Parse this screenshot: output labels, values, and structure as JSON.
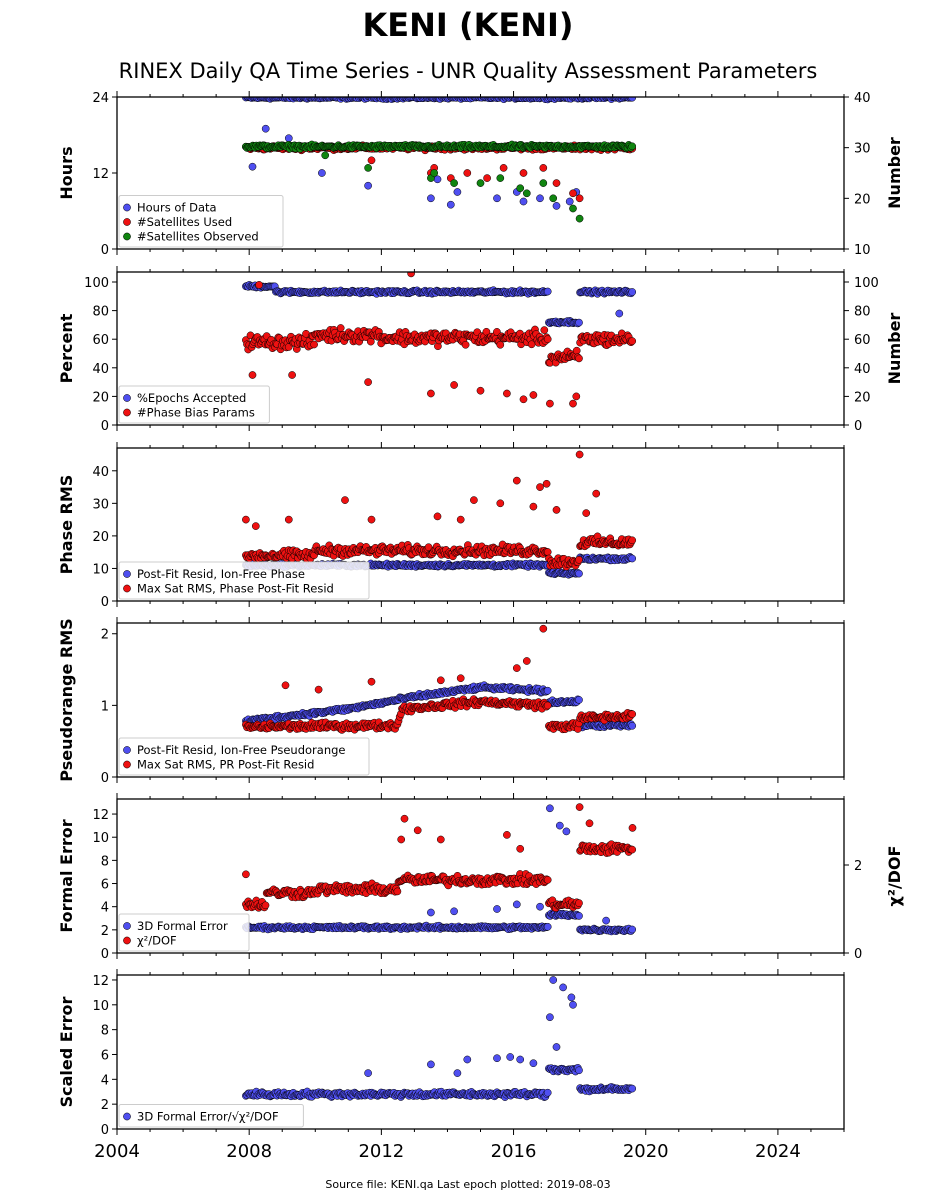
{
  "header": {
    "title": "KENI (KENI)",
    "subtitle": "RINEX Daily QA Time Series - UNR Quality Assessment Parameters"
  },
  "footer": "Source file: KENI.qa Last epoch plotted: 2019-08-03",
  "colors": {
    "blue": "#4f4ff0",
    "red": "#ee1111",
    "green": "#108510",
    "edge": "#000000"
  },
  "chart_data": [
    {
      "type": "scatter",
      "ylabel": "Hours",
      "ylabel_right": "Number",
      "xlim": [
        2004,
        2026
      ],
      "ylim": [
        0,
        24
      ],
      "ylim_right": [
        10,
        40
      ],
      "yticks": [
        0,
        12,
        24
      ],
      "yticks_right": [
        10,
        20,
        30,
        40
      ],
      "legend_position": "lower-left",
      "series": [
        {
          "name": "Hours of Data",
          "axis": "left",
          "color": "blue",
          "base": 23.9,
          "noise": 0.3,
          "outliers": [
            [
              2008.1,
              13
            ],
            [
              2008.5,
              19
            ],
            [
              2009.2,
              17.5
            ],
            [
              2010.2,
              12
            ],
            [
              2011.6,
              10
            ],
            [
              2013.5,
              8
            ],
            [
              2013.7,
              11
            ],
            [
              2014.1,
              7
            ],
            [
              2014.3,
              9
            ],
            [
              2015.5,
              8
            ],
            [
              2016.1,
              9
            ],
            [
              2016.3,
              7.5
            ],
            [
              2016.8,
              8
            ],
            [
              2017.3,
              6.8
            ],
            [
              2017.7,
              7.5
            ],
            [
              2017.9,
              9
            ]
          ]
        },
        {
          "name": "#Satellites Used",
          "axis": "right",
          "color": "red",
          "base": 30,
          "noise": 0.6,
          "outliers": [
            [
              2011.7,
              27.5
            ],
            [
              2013.5,
              25
            ],
            [
              2013.6,
              26
            ],
            [
              2014.1,
              24
            ],
            [
              2014.6,
              25
            ],
            [
              2015.2,
              24
            ],
            [
              2015.7,
              26
            ],
            [
              2016.3,
              25
            ],
            [
              2016.9,
              26
            ],
            [
              2017.3,
              23
            ],
            [
              2017.8,
              21
            ],
            [
              2018.0,
              20
            ]
          ]
        },
        {
          "name": "#Satellites Observed",
          "axis": "right",
          "color": "green",
          "base": 30.2,
          "noise": 0.5,
          "outliers": [
            [
              2010.3,
              28.5
            ],
            [
              2011.6,
              26
            ],
            [
              2013.5,
              24
            ],
            [
              2013.6,
              25
            ],
            [
              2014.2,
              23
            ],
            [
              2015.0,
              23
            ],
            [
              2015.6,
              24
            ],
            [
              2016.2,
              22
            ],
            [
              2016.4,
              21
            ],
            [
              2016.9,
              23
            ],
            [
              2017.2,
              20
            ],
            [
              2017.8,
              18
            ],
            [
              2018.0,
              16
            ]
          ]
        }
      ]
    },
    {
      "type": "scatter",
      "ylabel": "Percent",
      "ylabel_right": "Number",
      "xlim": [
        2004,
        2026
      ],
      "ylim": [
        0,
        107
      ],
      "ylim_right": [
        0,
        107
      ],
      "yticks": [
        0,
        20,
        40,
        60,
        80,
        100
      ],
      "yticks_right": [
        0,
        20,
        40,
        60,
        80,
        100
      ],
      "legend_position": "lower-left",
      "series": [
        {
          "name": "%Epochs Accepted",
          "axis": "left",
          "color": "blue",
          "segments": [
            [
              2007.9,
              2008.8,
              97
            ],
            [
              2008.8,
              2010.0,
              93
            ],
            [
              2010.0,
              2017.05,
              93
            ],
            [
              2017.05,
              2018.0,
              72
            ],
            [
              2018.0,
              2019.6,
              93
            ]
          ],
          "noise": 1.5,
          "outliers": [
            [
              2019.2,
              78
            ]
          ]
        },
        {
          "name": "#Phase Bias Params",
          "axis": "right",
          "color": "red",
          "segments": [
            [
              2007.9,
              2010.0,
              58
            ],
            [
              2010.0,
              2012.0,
              63
            ],
            [
              2012.0,
              2017.05,
              61
            ],
            [
              2017.05,
              2018.0,
              47
            ],
            [
              2018.0,
              2019.6,
              60
            ]
          ],
          "noise": 7,
          "outliers": [
            [
              2008.3,
              98
            ],
            [
              2008.1,
              35
            ],
            [
              2009.3,
              35
            ],
            [
              2011.6,
              30
            ],
            [
              2012.9,
              106
            ],
            [
              2013.5,
              22
            ],
            [
              2014.2,
              28
            ],
            [
              2015.0,
              24
            ],
            [
              2015.8,
              22
            ],
            [
              2016.3,
              18
            ],
            [
              2016.6,
              21
            ],
            [
              2017.1,
              15
            ],
            [
              2017.8,
              15
            ],
            [
              2017.9,
              20
            ]
          ]
        }
      ]
    },
    {
      "type": "scatter",
      "ylabel": "Phase RMS",
      "xlim": [
        2004,
        2026
      ],
      "ylim": [
        0,
        47
      ],
      "yticks": [
        0,
        10,
        20,
        30,
        40
      ],
      "legend_position": "lower-left",
      "series": [
        {
          "name": "Post-Fit Resid, Ion-Free Phase",
          "axis": "left",
          "color": "blue",
          "segments": [
            [
              2007.9,
              2017.05,
              11
            ],
            [
              2017.05,
              2018.0,
              8.5
            ],
            [
              2018.0,
              2019.6,
              13
            ]
          ],
          "noise": 0.7,
          "outliers": []
        },
        {
          "name": "Max Sat RMS, Phase Post-Fit Resid",
          "axis": "left",
          "color": "red",
          "segments": [
            [
              2007.9,
              2010.0,
              14
            ],
            [
              2010.0,
              2017.05,
              15.5
            ],
            [
              2017.05,
              2018.0,
              12
            ],
            [
              2018.0,
              2019.6,
              18
            ]
          ],
          "noise": 2.2,
          "outliers": [
            [
              2007.9,
              25
            ],
            [
              2008.2,
              23
            ],
            [
              2009.2,
              25
            ],
            [
              2010.9,
              31
            ],
            [
              2011.7,
              25
            ],
            [
              2013.7,
              26
            ],
            [
              2014.4,
              25
            ],
            [
              2014.8,
              31
            ],
            [
              2015.6,
              30
            ],
            [
              2016.1,
              37
            ],
            [
              2016.6,
              29
            ],
            [
              2016.8,
              35
            ],
            [
              2017.0,
              36
            ],
            [
              2017.3,
              28
            ],
            [
              2018.0,
              45
            ],
            [
              2018.2,
              27
            ],
            [
              2018.5,
              33
            ]
          ]
        }
      ]
    },
    {
      "type": "scatter",
      "ylabel": "Pseudorange RMS",
      "xlim": [
        2004,
        2026
      ],
      "ylim": [
        0,
        2.15
      ],
      "yticks": [
        0,
        1,
        2
      ],
      "legend_position": "lower-left",
      "series": [
        {
          "name": "Post-Fit Resid, Ion-Free Pseudorange",
          "axis": "left",
          "color": "blue",
          "ramp": [
            [
              2007.9,
              0.78
            ],
            [
              2011.0,
              0.95
            ],
            [
              2013.0,
              1.12
            ],
            [
              2015.0,
              1.25
            ],
            [
              2017.05,
              1.2
            ],
            [
              2017.06,
              1.05
            ],
            [
              2018.0,
              1.05
            ],
            [
              2018.01,
              0.72
            ],
            [
              2019.6,
              0.72
            ]
          ],
          "noise": 0.04,
          "outliers": []
        },
        {
          "name": "Max Sat RMS, PR Post-Fit Resid",
          "axis": "left",
          "color": "red",
          "ramp": [
            [
              2007.9,
              0.7
            ],
            [
              2012.5,
              0.72
            ],
            [
              2012.6,
              0.95
            ],
            [
              2015.0,
              1.05
            ],
            [
              2017.05,
              1.0
            ],
            [
              2017.06,
              0.7
            ],
            [
              2018.0,
              0.72
            ],
            [
              2018.01,
              0.82
            ],
            [
              2019.6,
              0.85
            ]
          ],
          "noise": 0.07,
          "outliers": [
            [
              2009.1,
              1.28
            ],
            [
              2010.1,
              1.22
            ],
            [
              2011.7,
              1.33
            ],
            [
              2013.8,
              1.35
            ],
            [
              2014.4,
              1.38
            ],
            [
              2016.1,
              1.52
            ],
            [
              2016.4,
              1.62
            ],
            [
              2016.9,
              2.07
            ]
          ]
        }
      ]
    },
    {
      "type": "scatter",
      "ylabel": "Formal Error",
      "ylabel_right": "χ²/DOF",
      "xlim": [
        2004,
        2026
      ],
      "ylim": [
        0,
        13.3
      ],
      "ylim_right": [
        0,
        3.5
      ],
      "yticks": [
        0,
        2,
        4,
        6,
        8,
        10,
        12
      ],
      "yticks_right": [
        0,
        2
      ],
      "legend_position": "lower-left",
      "series": [
        {
          "name": "3D Formal Error",
          "axis": "left",
          "color": "blue",
          "segments": [
            [
              2007.9,
              2017.05,
              2.2
            ],
            [
              2017.05,
              2018.0,
              3.3
            ],
            [
              2018.0,
              2019.6,
              2.0
            ]
          ],
          "noise": 0.2,
          "outliers": [
            [
              2013.5,
              3.5
            ],
            [
              2014.2,
              3.6
            ],
            [
              2015.5,
              3.8
            ],
            [
              2016.1,
              4.2
            ],
            [
              2016.8,
              4.0
            ],
            [
              2017.1,
              12.5
            ],
            [
              2017.4,
              11.0
            ],
            [
              2017.6,
              10.5
            ],
            [
              2018.8,
              2.8
            ]
          ]
        },
        {
          "name": "χ²/DOF",
          "axis": "left",
          "color": "red",
          "segments": [
            [
              2007.9,
              2008.5,
              4.2
            ],
            [
              2008.5,
              2010.0,
              5.2
            ],
            [
              2010.0,
              2012.5,
              5.5
            ],
            [
              2012.5,
              2017.05,
              6.3
            ],
            [
              2017.05,
              2018.0,
              4.2
            ],
            [
              2018.0,
              2019.6,
              9.0
            ]
          ],
          "noise": 0.6,
          "outliers": [
            [
              2007.9,
              6.8
            ],
            [
              2012.7,
              11.6
            ],
            [
              2012.6,
              9.8
            ],
            [
              2013.1,
              10.6
            ],
            [
              2013.8,
              9.8
            ],
            [
              2015.8,
              10.2
            ],
            [
              2016.2,
              9.0
            ],
            [
              2018.0,
              12.6
            ],
            [
              2018.3,
              11.2
            ],
            [
              2019.6,
              10.8
            ]
          ]
        }
      ]
    },
    {
      "type": "scatter",
      "ylabel": "Scaled Error",
      "xlim": [
        2004,
        2026
      ],
      "ylim": [
        0,
        12.4
      ],
      "yticks": [
        0,
        2,
        4,
        6,
        8,
        10,
        12
      ],
      "xticks": [
        2004,
        2008,
        2012,
        2016,
        2020,
        2024
      ],
      "legend_position": "lower-left",
      "series": [
        {
          "name": "3D Formal Error/√χ²/DOF",
          "axis": "left",
          "color": "blue",
          "segments": [
            [
              2007.9,
              2017.05,
              2.8
            ],
            [
              2017.05,
              2018.0,
              4.8
            ],
            [
              2018.0,
              2019.6,
              3.2
            ]
          ],
          "noise": 0.3,
          "outliers": [
            [
              2011.6,
              4.5
            ],
            [
              2013.5,
              5.2
            ],
            [
              2014.3,
              4.5
            ],
            [
              2014.6,
              5.6
            ],
            [
              2015.5,
              5.7
            ],
            [
              2015.9,
              5.8
            ],
            [
              2016.2,
              5.6
            ],
            [
              2016.6,
              5.3
            ],
            [
              2017.1,
              9.0
            ],
            [
              2017.2,
              12.0
            ],
            [
              2017.5,
              11.4
            ],
            [
              2017.75,
              10.6
            ],
            [
              2017.8,
              10.0
            ],
            [
              2017.3,
              6.6
            ]
          ]
        }
      ]
    }
  ]
}
